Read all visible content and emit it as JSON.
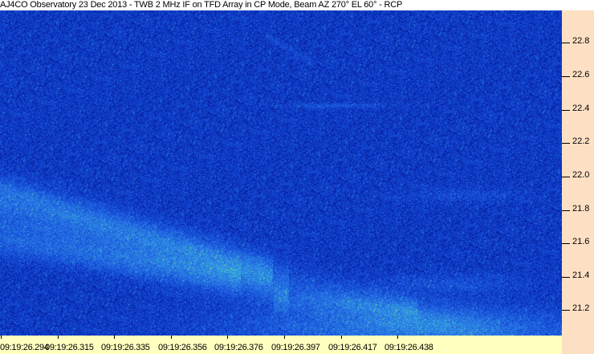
{
  "chart_data": {
    "type": "heatmap",
    "title": "AJ4CO Observatory 23 Dec 2013 - TWB 2 MHz IF on TFD Array in CP Mode, Beam AZ 270° EL 60° - RCP",
    "xlabel": "",
    "ylabel": "",
    "x_tick_labels": [
      "09:19:26.294",
      "09:19:26.315",
      "09:19:26.335",
      "09:19:26.356",
      "09:19:26.376",
      "09:19:26.397",
      "09:19:26.417",
      "09:19:26.438"
    ],
    "y_tick_labels": [
      "22.8",
      "22.6",
      "22.4",
      "22.2",
      "22.0",
      "21.8",
      "21.6",
      "21.4",
      "21.2"
    ],
    "y_ticks": [
      22.8,
      22.6,
      22.4,
      22.2,
      22.0,
      21.8,
      21.6,
      21.4,
      21.2
    ],
    "ylim": [
      21.05,
      22.98
    ],
    "y_axis_position": "right",
    "colormap": [
      "#000a80",
      "#1040d0",
      "#2a7ae8",
      "#40c8d0",
      "#e8e820"
    ],
    "grid": false
  },
  "colors": {
    "y_axis_background": "#fde0c4",
    "x_axis_background": "#ffffc0"
  }
}
